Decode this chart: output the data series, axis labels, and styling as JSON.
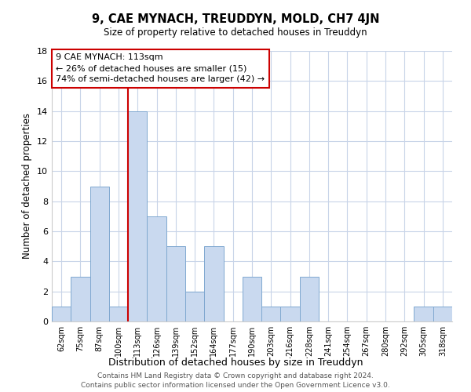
{
  "title": "9, CAE MYNACH, TREUDDYN, MOLD, CH7 4JN",
  "subtitle": "Size of property relative to detached houses in Treuddyn",
  "xlabel": "Distribution of detached houses by size in Treuddyn",
  "ylabel": "Number of detached properties",
  "bin_labels": [
    "62sqm",
    "75sqm",
    "87sqm",
    "100sqm",
    "113sqm",
    "126sqm",
    "139sqm",
    "152sqm",
    "164sqm",
    "177sqm",
    "190sqm",
    "203sqm",
    "216sqm",
    "228sqm",
    "241sqm",
    "254sqm",
    "267sqm",
    "280sqm",
    "292sqm",
    "305sqm",
    "318sqm"
  ],
  "bar_heights": [
    1,
    3,
    9,
    1,
    14,
    7,
    5,
    2,
    5,
    0,
    3,
    1,
    1,
    3,
    0,
    0,
    0,
    0,
    0,
    1,
    1
  ],
  "bar_color": "#c9d9ef",
  "bar_edge_color": "#7fa8d0",
  "highlight_bin_index": 4,
  "highlight_color": "#cc0000",
  "ylim": [
    0,
    18
  ],
  "yticks": [
    0,
    2,
    4,
    6,
    8,
    10,
    12,
    14,
    16,
    18
  ],
  "annotation_title": "9 CAE MYNACH: 113sqm",
  "annotation_line1": "← 26% of detached houses are smaller (15)",
  "annotation_line2": "74% of semi-detached houses are larger (42) →",
  "annotation_box_color": "#ffffff",
  "annotation_box_edge": "#cc0000",
  "footer_line1": "Contains HM Land Registry data © Crown copyright and database right 2024.",
  "footer_line2": "Contains public sector information licensed under the Open Government Licence v3.0.",
  "bg_color": "#ffffff",
  "grid_color": "#c8d4e8"
}
